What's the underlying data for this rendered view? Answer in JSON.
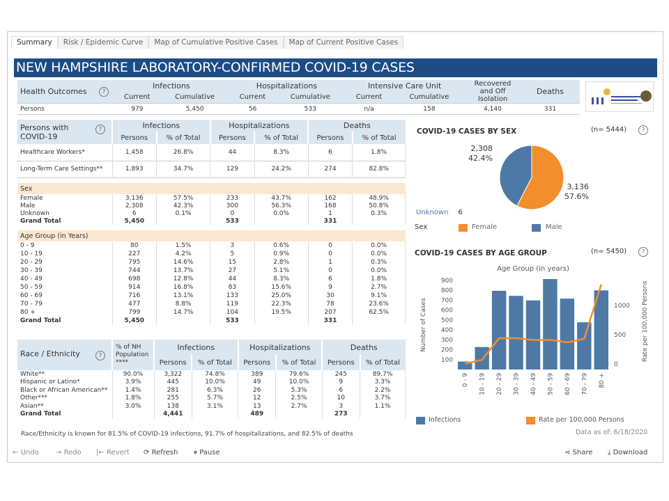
{
  "tabs": [
    "Summary",
    "Risk / Epidemic Curve",
    "Map of Cumulative Positive Cases",
    "Map of Current Positive Cases"
  ],
  "title": "NEW HAMPSHIRE LABORATORY-CONFIRMED COVID-19 CASES",
  "health_outcomes": {
    "label": "Health Outcomes",
    "groups": [
      "Infections",
      "Hospitalizations",
      "Intensive Care Unit",
      "Recovered and Off Isolation",
      "Deaths"
    ],
    "subs": [
      "Current",
      "Cumulative",
      "Current",
      "Cumulative",
      "Current",
      "Cumulative"
    ],
    "row_label": "Persons",
    "values": [
      "979",
      "5,450",
      "56",
      "533",
      "n/a",
      "158",
      "4,140",
      "331"
    ]
  },
  "logo_text": "NH DIVISION OF Public Health Services",
  "persons": {
    "label": "Persons with COVID-19",
    "groups": [
      "Infections",
      "Hospitalizations",
      "Deaths"
    ],
    "subs": [
      "Persons",
      "% of Total",
      "Persons",
      "% of Total",
      "Persons",
      "% of Total"
    ],
    "top_rows": [
      [
        "Healthcare Workers*",
        "1,458",
        "26.8%",
        "44",
        "8.3%",
        "6",
        "1.8%"
      ],
      [
        "Long-Term Care Settings**",
        "1,893",
        "34.7%",
        "129",
        "24.2%",
        "274",
        "82.8%"
      ]
    ],
    "sex_label": "Sex",
    "sex_rows": [
      [
        "Female",
        "3,136",
        "57.5%",
        "233",
        "43.7%",
        "162",
        "48.9%"
      ],
      [
        "Male",
        "2,308",
        "42.3%",
        "300",
        "56.3%",
        "168",
        "50.8%"
      ],
      [
        "Unknown",
        "6",
        "0.1%",
        "0",
        "0.0%",
        "1",
        "0.3%"
      ],
      [
        "Grand Total",
        "5,450",
        "",
        "533",
        "",
        "331",
        ""
      ]
    ],
    "age_label": "Age Group (in Years)",
    "age_rows": [
      [
        "0 - 9",
        "80",
        "1.5%",
        "3",
        "0.6%",
        "0",
        "0.0%"
      ],
      [
        "10 - 19",
        "227",
        "4.2%",
        "5",
        "0.9%",
        "0",
        "0.0%"
      ],
      [
        "20 - 29",
        "795",
        "14.6%",
        "15",
        "2.8%",
        "1",
        "0.3%"
      ],
      [
        "30 - 39",
        "744",
        "13.7%",
        "27",
        "5.1%",
        "0",
        "0.0%"
      ],
      [
        "40 - 49",
        "698",
        "12.8%",
        "44",
        "8.3%",
        "6",
        "1.8%"
      ],
      [
        "50 - 59",
        "914",
        "16.8%",
        "83",
        "15.6%",
        "9",
        "2.7%"
      ],
      [
        "60 - 69",
        "716",
        "13.1%",
        "133",
        "25.0%",
        "30",
        "9.1%"
      ],
      [
        "70 - 79",
        "477",
        "8.8%",
        "119",
        "22.3%",
        "78",
        "23.6%"
      ],
      [
        "80 +",
        "799",
        "14.7%",
        "104",
        "19.5%",
        "207",
        "62.5%"
      ],
      [
        "Grand Total",
        "5,450",
        "",
        "533",
        "",
        "331",
        ""
      ]
    ]
  },
  "race": {
    "label": "Race / Ethnicity",
    "pop_header": "% of NH Population ****",
    "groups": [
      "Infections",
      "Hospitalizations",
      "Deaths"
    ],
    "subs": [
      "Persons",
      "% of Total",
      "Persons",
      "% of Total",
      "Persons",
      "% of Total"
    ],
    "rows": [
      [
        "White**",
        "90.0%",
        "3,322",
        "74.8%",
        "389",
        "79.6%",
        "245",
        "89.7%"
      ],
      [
        "Hispanic or Latino*",
        "3.9%",
        "445",
        "10.0%",
        "49",
        "10.0%",
        "9",
        "3.3%"
      ],
      [
        "Black or African American**",
        "1.4%",
        "281",
        "6.3%",
        "26",
        "5.3%",
        "6",
        "2.2%"
      ],
      [
        "Other***",
        "1.8%",
        "255",
        "5.7%",
        "12",
        "2.5%",
        "10",
        "3.7%"
      ],
      [
        "Asian**",
        "3.0%",
        "138",
        "3.1%",
        "13",
        "2.7%",
        "3",
        "1.1%"
      ],
      [
        "Grand Total",
        "",
        "4,441",
        "",
        "489",
        "",
        "273",
        ""
      ]
    ],
    "footnote": "Race/Ethnicity is known for 81.5% of COVID-19 infections, 91.7% of hospitalizations, and 82.5% of deaths"
  },
  "chart_data": [
    {
      "type": "pie",
      "title": "COVID-19 CASES BY SEX",
      "n_label": "(n= 5444)",
      "slices": [
        {
          "name": "Female",
          "value": 3136,
          "pct": "57.6%",
          "label": "3,136"
        },
        {
          "name": "Male",
          "value": 2308,
          "pct": "42.4%",
          "label": "2,308"
        }
      ],
      "unknown_label": "Unknown",
      "unknown_value": "6",
      "legend_title": "Sex",
      "colors": {
        "Female": "#f28e2b",
        "Male": "#4e79a7"
      }
    },
    {
      "type": "bar+line",
      "title": "COVID-19 CASES BY AGE GROUP",
      "n_label": "(n= 5450)",
      "xlabel": "Age Group (in years)",
      "ylabel": "Number of Cases",
      "y2label": "Rate per 100,000 Persons",
      "categories": [
        "0 - 9",
        "10 - 19",
        "20 - 29",
        "30 - 39",
        "40 - 49",
        "50 - 59",
        "60 - 69",
        "70 - 79",
        "80 +"
      ],
      "yticks": [
        100,
        200,
        300,
        400,
        500,
        600,
        700,
        800,
        900
      ],
      "y2ticks": [
        0,
        500,
        1000
      ],
      "series": [
        {
          "name": "Infections",
          "type": "bar",
          "values": [
            80,
            227,
            795,
            744,
            698,
            914,
            716,
            477,
            799
          ],
          "color": "#4e79a7"
        },
        {
          "name": "Rate per 100,000 Persons",
          "type": "line",
          "values": [
            5,
            70,
            440,
            440,
            410,
            410,
            370,
            430,
            1360
          ],
          "color": "#f28e2b"
        }
      ]
    }
  ],
  "data_as_of": "Data as of: 6/18/2020",
  "toolbar": {
    "undo": "Undo",
    "redo": "Redo",
    "revert": "Revert",
    "refresh": "Refresh",
    "pause": "Pause",
    "share": "Share",
    "download": "Download"
  }
}
